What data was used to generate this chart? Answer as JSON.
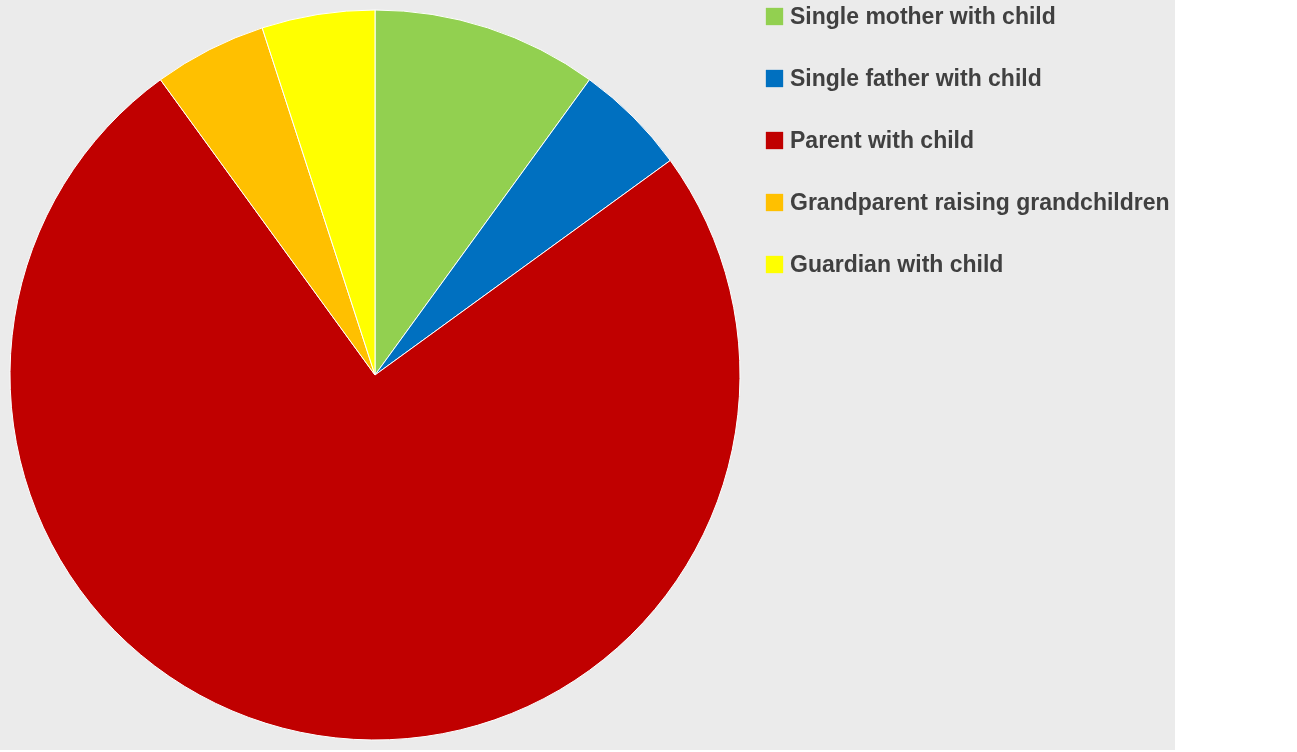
{
  "chart_data": {
    "type": "pie",
    "categories": [
      "Single mother with child",
      "Single father with child",
      "Parent with child",
      "Grandparent raising grandchildren",
      "Guardian with child"
    ],
    "values": [
      10,
      5,
      75,
      5,
      5
    ],
    "colors": [
      "#92d050",
      "#0070c0",
      "#c00000",
      "#ffc000",
      "#ffff00"
    ],
    "legend": "right"
  }
}
